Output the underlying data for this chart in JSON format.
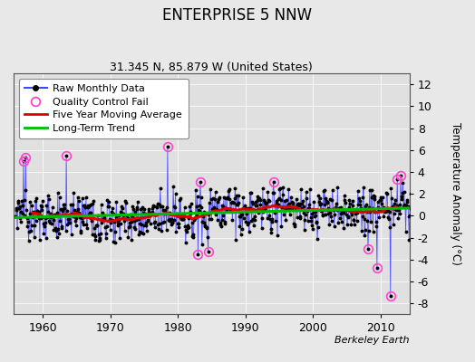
{
  "title": "ENTERPRISE 5 NNW",
  "subtitle": "31.345 N, 85.879 W (United States)",
  "ylabel": "Temperature Anomaly (°C)",
  "watermark": "Berkeley Earth",
  "year_start": 1956,
  "year_end": 2015,
  "ylim": [
    -9,
    13
  ],
  "yticks": [
    -8,
    -6,
    -4,
    -2,
    0,
    2,
    4,
    6,
    8,
    10,
    12
  ],
  "xticks": [
    1960,
    1970,
    1980,
    1990,
    2000,
    2010
  ],
  "bg_color": "#e8e8e8",
  "plot_bg_color": "#e0e0e0",
  "raw_line_color": "#4444ff",
  "raw_dot_color": "#000000",
  "qc_fail_color": "#ff44cc",
  "moving_avg_color": "#dd0000",
  "trend_color": "#00bb00",
  "seed": 37
}
